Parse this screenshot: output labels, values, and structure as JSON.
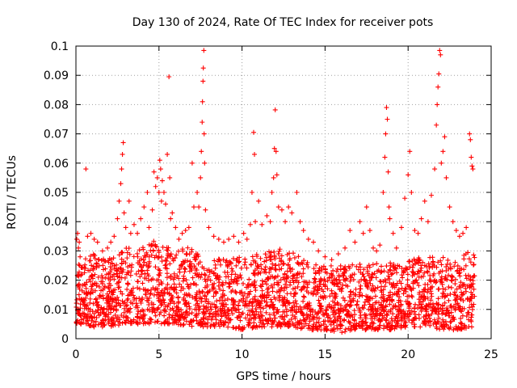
{
  "chart_data": {
    "type": "scatter",
    "title": "Day 130 of 2024, Rate Of TEC Index for receiver pots",
    "xlabel": "GPS time / hours",
    "ylabel": "ROTI / TECUs",
    "xlim": [
      0,
      25
    ],
    "ylim": [
      0,
      0.1
    ],
    "xticks": [
      0,
      5,
      10,
      15,
      20,
      25
    ],
    "xtick_labels": [
      "0",
      "5",
      "10",
      "15",
      "20",
      "25"
    ],
    "yticks": [
      0,
      0.01,
      0.02,
      0.03,
      0.04,
      0.05,
      0.06,
      0.07,
      0.08,
      0.09,
      0.1
    ],
    "ytick_labels": [
      "0",
      "0.01",
      "0.02",
      "0.03",
      "0.04",
      "0.05",
      "0.06",
      "0.07",
      "0.08",
      "0.09",
      "0.1"
    ],
    "grid": true,
    "marker": "+",
    "color": "#ff0000",
    "data_extent_hours": [
      0,
      24
    ],
    "series": [
      {
        "name": "ROTI",
        "points": [
          [
            0.05,
            0.034
          ],
          [
            0.1,
            0.036
          ],
          [
            0.15,
            0.031
          ],
          [
            0.2,
            0.033
          ],
          [
            0.25,
            0.028
          ],
          [
            0.6,
            0.058
          ],
          [
            0.7,
            0.035
          ],
          [
            0.9,
            0.036
          ],
          [
            1.1,
            0.034
          ],
          [
            1.3,
            0.033
          ],
          [
            1.6,
            0.03
          ],
          [
            1.9,
            0.031
          ],
          [
            2.1,
            0.033
          ],
          [
            2.3,
            0.035
          ],
          [
            2.5,
            0.041
          ],
          [
            2.6,
            0.047
          ],
          [
            2.7,
            0.053
          ],
          [
            2.75,
            0.058
          ],
          [
            2.8,
            0.063
          ],
          [
            2.85,
            0.067
          ],
          [
            2.9,
            0.043
          ],
          [
            3.0,
            0.038
          ],
          [
            3.2,
            0.047
          ],
          [
            3.3,
            0.036
          ],
          [
            3.5,
            0.039
          ],
          [
            3.7,
            0.036
          ],
          [
            3.9,
            0.041
          ],
          [
            4.1,
            0.045
          ],
          [
            4.3,
            0.05
          ],
          [
            4.4,
            0.038
          ],
          [
            4.6,
            0.044
          ],
          [
            4.7,
            0.057
          ],
          [
            4.8,
            0.052
          ],
          [
            4.9,
            0.055
          ],
          [
            5.0,
            0.05
          ],
          [
            5.05,
            0.061
          ],
          [
            5.1,
            0.058
          ],
          [
            5.15,
            0.047
          ],
          [
            5.2,
            0.054
          ],
          [
            5.3,
            0.05
          ],
          [
            5.4,
            0.046
          ],
          [
            5.5,
            0.063
          ],
          [
            5.6,
            0.0895
          ],
          [
            5.65,
            0.055
          ],
          [
            5.7,
            0.041
          ],
          [
            5.8,
            0.043
          ],
          [
            6.0,
            0.038
          ],
          [
            6.2,
            0.034
          ],
          [
            6.4,
            0.036
          ],
          [
            6.6,
            0.037
          ],
          [
            6.8,
            0.038
          ],
          [
            7.0,
            0.06
          ],
          [
            7.1,
            0.045
          ],
          [
            7.3,
            0.05
          ],
          [
            7.4,
            0.045
          ],
          [
            7.5,
            0.055
          ],
          [
            7.55,
            0.064
          ],
          [
            7.6,
            0.074
          ],
          [
            7.62,
            0.081
          ],
          [
            7.65,
            0.088
          ],
          [
            7.67,
            0.0925
          ],
          [
            7.7,
            0.0985
          ],
          [
            7.72,
            0.07
          ],
          [
            7.75,
            0.06
          ],
          [
            7.8,
            0.044
          ],
          [
            8.0,
            0.038
          ],
          [
            8.3,
            0.035
          ],
          [
            8.6,
            0.034
          ],
          [
            8.9,
            0.033
          ],
          [
            9.2,
            0.034
          ],
          [
            9.5,
            0.035
          ],
          [
            9.8,
            0.033
          ],
          [
            10.1,
            0.036
          ],
          [
            10.3,
            0.034
          ],
          [
            10.5,
            0.039
          ],
          [
            10.6,
            0.05
          ],
          [
            10.7,
            0.0705
          ],
          [
            10.75,
            0.063
          ],
          [
            10.8,
            0.04
          ],
          [
            11.0,
            0.047
          ],
          [
            11.2,
            0.039
          ],
          [
            11.5,
            0.042
          ],
          [
            11.7,
            0.04
          ],
          [
            11.8,
            0.05
          ],
          [
            11.9,
            0.055
          ],
          [
            11.95,
            0.065
          ],
          [
            12.0,
            0.0782
          ],
          [
            12.05,
            0.064
          ],
          [
            12.1,
            0.056
          ],
          [
            12.2,
            0.045
          ],
          [
            12.4,
            0.044
          ],
          [
            12.6,
            0.04
          ],
          [
            12.8,
            0.045
          ],
          [
            13.0,
            0.043
          ],
          [
            13.3,
            0.05
          ],
          [
            13.5,
            0.04
          ],
          [
            13.7,
            0.037
          ],
          [
            14.0,
            0.034
          ],
          [
            14.3,
            0.033
          ],
          [
            14.6,
            0.03
          ],
          [
            15.0,
            0.028
          ],
          [
            15.4,
            0.027
          ],
          [
            15.8,
            0.029
          ],
          [
            16.2,
            0.031
          ],
          [
            16.5,
            0.037
          ],
          [
            16.8,
            0.033
          ],
          [
            17.1,
            0.04
          ],
          [
            17.3,
            0.036
          ],
          [
            17.5,
            0.045
          ],
          [
            17.7,
            0.037
          ],
          [
            17.9,
            0.031
          ],
          [
            18.1,
            0.03
          ],
          [
            18.3,
            0.032
          ],
          [
            18.5,
            0.05
          ],
          [
            18.6,
            0.062
          ],
          [
            18.65,
            0.07
          ],
          [
            18.7,
            0.079
          ],
          [
            18.75,
            0.075
          ],
          [
            18.8,
            0.057
          ],
          [
            18.85,
            0.045
          ],
          [
            18.9,
            0.041
          ],
          [
            19.1,
            0.036
          ],
          [
            19.3,
            0.031
          ],
          [
            19.6,
            0.038
          ],
          [
            19.8,
            0.048
          ],
          [
            20.0,
            0.056
          ],
          [
            20.1,
            0.064
          ],
          [
            20.2,
            0.05
          ],
          [
            20.4,
            0.037
          ],
          [
            20.6,
            0.036
          ],
          [
            20.8,
            0.041
          ],
          [
            21.0,
            0.047
          ],
          [
            21.2,
            0.04
          ],
          [
            21.4,
            0.049
          ],
          [
            21.6,
            0.058
          ],
          [
            21.7,
            0.073
          ],
          [
            21.75,
            0.08
          ],
          [
            21.8,
            0.086
          ],
          [
            21.85,
            0.0905
          ],
          [
            21.9,
            0.0985
          ],
          [
            21.95,
            0.097
          ],
          [
            22.0,
            0.06
          ],
          [
            22.1,
            0.064
          ],
          [
            22.2,
            0.069
          ],
          [
            22.3,
            0.055
          ],
          [
            22.5,
            0.045
          ],
          [
            22.7,
            0.04
          ],
          [
            22.9,
            0.037
          ],
          [
            23.1,
            0.035
          ],
          [
            23.3,
            0.036
          ],
          [
            23.5,
            0.038
          ],
          [
            23.7,
            0.07
          ],
          [
            23.75,
            0.068
          ],
          [
            23.8,
            0.062
          ],
          [
            23.85,
            0.059
          ],
          [
            23.9,
            0.058
          ]
        ]
      }
    ],
    "band_envelope": [
      [
        0.0,
        0.005,
        0.025
      ],
      [
        1.0,
        0.004,
        0.029
      ],
      [
        2.0,
        0.004,
        0.028
      ],
      [
        3.0,
        0.005,
        0.031
      ],
      [
        4.0,
        0.005,
        0.032
      ],
      [
        5.0,
        0.005,
        0.034
      ],
      [
        6.0,
        0.005,
        0.031
      ],
      [
        7.0,
        0.004,
        0.032
      ],
      [
        8.0,
        0.004,
        0.028
      ],
      [
        9.0,
        0.004,
        0.027
      ],
      [
        10.0,
        0.003,
        0.028
      ],
      [
        11.0,
        0.004,
        0.029
      ],
      [
        12.0,
        0.004,
        0.031
      ],
      [
        13.0,
        0.004,
        0.03
      ],
      [
        14.0,
        0.003,
        0.026
      ],
      [
        15.0,
        0.003,
        0.025
      ],
      [
        16.0,
        0.002,
        0.025
      ],
      [
        17.0,
        0.003,
        0.026
      ],
      [
        18.0,
        0.003,
        0.026
      ],
      [
        19.0,
        0.003,
        0.026
      ],
      [
        20.0,
        0.004,
        0.027
      ],
      [
        21.0,
        0.004,
        0.028
      ],
      [
        22.0,
        0.003,
        0.028
      ],
      [
        23.0,
        0.003,
        0.029
      ],
      [
        24.0,
        0.004,
        0.03
      ]
    ]
  }
}
